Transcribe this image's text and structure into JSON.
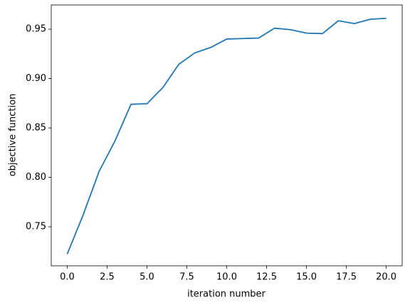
{
  "chart_data": {
    "type": "line",
    "xlabel": "iteration number",
    "ylabel": "objective function",
    "x": [
      0,
      1,
      2,
      3,
      4,
      5,
      6,
      7,
      8,
      9,
      10,
      11,
      12,
      13,
      14,
      15,
      16,
      17,
      18,
      19,
      20
    ],
    "values": [
      0.7223,
      0.762,
      0.806,
      0.837,
      0.874,
      0.8745,
      0.891,
      0.9145,
      0.926,
      0.9315,
      0.94,
      0.9405,
      0.941,
      0.951,
      0.9495,
      0.946,
      0.9455,
      0.9585,
      0.9557,
      0.96,
      0.961
    ],
    "color": "#1f77b4",
    "xlim": [
      -1,
      21
    ],
    "xticks": [
      {
        "value": 0,
        "label": "0.0"
      },
      2.5,
      {
        "value": 5,
        "label": "5.0"
      },
      7.5,
      {
        "value": 10,
        "label": "10.0"
      },
      12.5,
      {
        "value": 15,
        "label": "15.0"
      },
      17.5,
      {
        "value": 20,
        "label": "20.0"
      }
    ],
    "ylim": [
      0.7105,
      0.9745
    ],
    "yticks": [
      0.75,
      {
        "value": 0.8,
        "label": "0.80"
      },
      0.85,
      {
        "value": 0.9,
        "label": "0.90"
      },
      0.95
    ]
  }
}
